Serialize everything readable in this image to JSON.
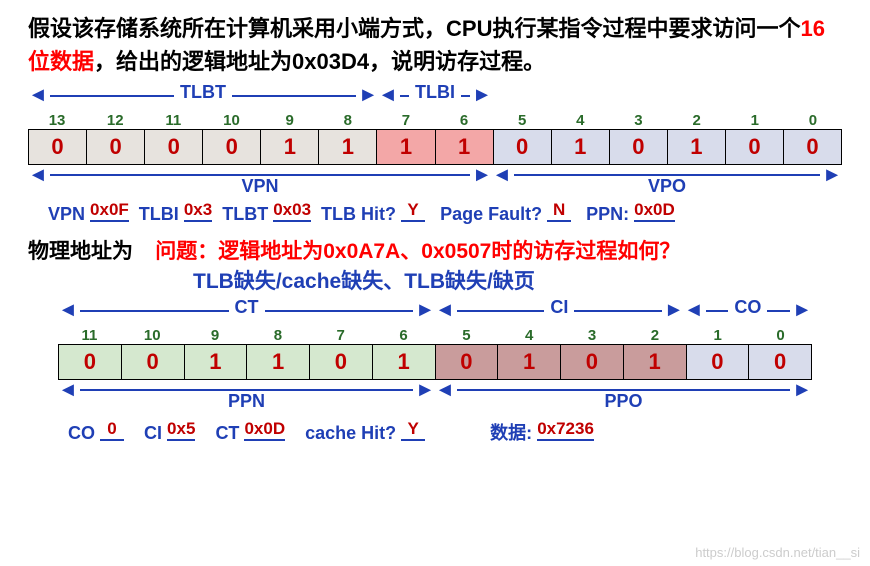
{
  "title": {
    "pre": "假设该存储系统所在计算机采用小端方式，CPU执行某指令过程中要求访问一个",
    "highlight": "16位数据",
    "post": "，给出的逻辑地址为0x03D4，说明访存过程。"
  },
  "virt": {
    "top_ranges": {
      "tlbt": {
        "label": "TLBT",
        "lpct": 0,
        "wpct": 43
      },
      "tlbi": {
        "label": "TLBI",
        "lpct": 43,
        "wpct": 14
      }
    },
    "indices": [
      "13",
      "12",
      "11",
      "10",
      "9",
      "8",
      "7",
      "6",
      "5",
      "4",
      "3",
      "2",
      "1",
      "0"
    ],
    "bits": [
      "0",
      "0",
      "0",
      "0",
      "1",
      "1",
      "1",
      "1",
      "0",
      "1",
      "0",
      "1",
      "0",
      "0"
    ],
    "bit_bg": [
      "#e7e3de",
      "#e7e3de",
      "#e7e3de",
      "#e7e3de",
      "#e7e3de",
      "#e7e3de",
      "#f3a7a7",
      "#f3a7a7",
      "#d8dceb",
      "#d8dceb",
      "#d8dceb",
      "#d8dceb",
      "#d8dceb",
      "#d8dceb"
    ],
    "bottom_ranges": {
      "vpn": {
        "label": "VPN",
        "lpct": 0,
        "wpct": 57
      },
      "vpo": {
        "label": "VPO",
        "lpct": 57,
        "wpct": 43
      }
    }
  },
  "vline": {
    "vpn_l": "VPN",
    "vpn_v": "0x0F",
    "tlbi_l": "TLBI",
    "tlbi_v": "0x3",
    "tlbt_l": "TLBT",
    "tlbt_v": "0x03",
    "hit_l": "TLB Hit?",
    "hit_v": "Y",
    "pf_l": "Page Fault?",
    "pf_v": "N",
    "ppn_l": "PPN:",
    "ppn_v": "0x0D"
  },
  "q": {
    "black": "物理地址为",
    "red": "问题：逻辑地址为0x0A7A、0x0507时的访存过程如何？",
    "blue": "TLB缺失/cache缺失、TLB缺失/缺页"
  },
  "phys": {
    "top_ranges": {
      "ct": {
        "label": "CT",
        "lpct": 0,
        "wpct": 50
      },
      "ci": {
        "label": "CI",
        "lpct": 50,
        "wpct": 33
      },
      "co": {
        "label": "CO",
        "lpct": 83,
        "wpct": 17
      }
    },
    "indices": [
      "11",
      "10",
      "9",
      "8",
      "7",
      "6",
      "5",
      "4",
      "3",
      "2",
      "1",
      "0"
    ],
    "bits": [
      "0",
      "0",
      "1",
      "1",
      "0",
      "1",
      "0",
      "1",
      "0",
      "1",
      "0",
      "0"
    ],
    "bit_bg": [
      "#d5e8cf",
      "#d5e8cf",
      "#d5e8cf",
      "#d5e8cf",
      "#d5e8cf",
      "#d5e8cf",
      "#c99c9c",
      "#c99c9c",
      "#c99c9c",
      "#c99c9c",
      "#d8dceb",
      "#d8dceb"
    ],
    "bottom_ranges": {
      "ppn": {
        "label": "PPN",
        "lpct": 0,
        "wpct": 50
      },
      "ppo": {
        "label": "PPO",
        "lpct": 50,
        "wpct": 50
      }
    }
  },
  "pline": {
    "co_l": "CO",
    "co_v": "0",
    "ci_l": "CI",
    "ci_v": "0x5",
    "ct_l": "CT",
    "ct_v": "0x0D",
    "chit_l": "cache Hit?",
    "chit_v": "Y",
    "data_l": "数据:",
    "data_v": "0x7236"
  },
  "wm": "https://blog.csdn.net/tian__si"
}
